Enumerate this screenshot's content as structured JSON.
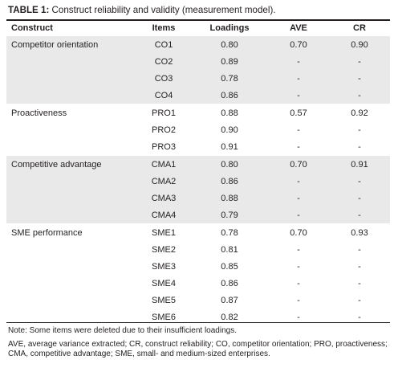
{
  "caption": {
    "label": "TABLE 1:",
    "text": " Construct reliability and validity (measurement model)."
  },
  "headers": {
    "construct": "Construct",
    "items": "Items",
    "loadings": "Loadings",
    "ave": "AVE",
    "cr": "CR"
  },
  "groups": [
    {
      "shaded": true,
      "rows": [
        {
          "construct": "Competitor orientation",
          "item": "CO1",
          "loading": "0.80",
          "ave": "0.70",
          "cr": "0.90"
        },
        {
          "construct": "",
          "item": "CO2",
          "loading": "0.89",
          "ave": "-",
          "cr": "-"
        },
        {
          "construct": "",
          "item": "CO3",
          "loading": "0.78",
          "ave": "-",
          "cr": "-"
        },
        {
          "construct": "",
          "item": "CO4",
          "loading": "0.86",
          "ave": "-",
          "cr": "-"
        }
      ]
    },
    {
      "shaded": false,
      "rows": [
        {
          "construct": "Proactiveness",
          "item": "PRO1",
          "loading": "0.88",
          "ave": "0.57",
          "cr": "0.92"
        },
        {
          "construct": "",
          "item": "PRO2",
          "loading": "0.90",
          "ave": "-",
          "cr": "-"
        },
        {
          "construct": "",
          "item": "PRO3",
          "loading": "0.91",
          "ave": "-",
          "cr": "-"
        }
      ]
    },
    {
      "shaded": true,
      "rows": [
        {
          "construct": "Competitive advantage",
          "item": "CMA1",
          "loading": "0.80",
          "ave": "0.70",
          "cr": "0.91"
        },
        {
          "construct": "",
          "item": "CMA2",
          "loading": "0.86",
          "ave": "-",
          "cr": "-"
        },
        {
          "construct": "",
          "item": "CMA3",
          "loading": "0.88",
          "ave": "-",
          "cr": "-"
        },
        {
          "construct": "",
          "item": "CMA4",
          "loading": "0.79",
          "ave": "-",
          "cr": "-"
        }
      ]
    },
    {
      "shaded": false,
      "rows": [
        {
          "construct": "SME performance",
          "item": "SME1",
          "loading": "0.78",
          "ave": "0.70",
          "cr": "0.93"
        },
        {
          "construct": "",
          "item": "SME2",
          "loading": "0.81",
          "ave": "-",
          "cr": "-"
        },
        {
          "construct": "",
          "item": "SME3",
          "loading": "0.85",
          "ave": "-",
          "cr": "-"
        },
        {
          "construct": "",
          "item": "SME4",
          "loading": "0.86",
          "ave": "-",
          "cr": "-"
        },
        {
          "construct": "",
          "item": "SME5",
          "loading": "0.87",
          "ave": "-",
          "cr": "-"
        },
        {
          "construct": "",
          "item": "SME6",
          "loading": "0.82",
          "ave": "-",
          "cr": "-"
        }
      ]
    }
  ],
  "notes": {
    "note": "Note: Some items were deleted due to their insufficient loadings.",
    "abbreviations": "AVE, average variance extracted; CR, construct reliability; CO, competitor orientation; PRO, proactiveness; CMA, competitive advantage; SME, small- and medium-sized enterprises."
  }
}
